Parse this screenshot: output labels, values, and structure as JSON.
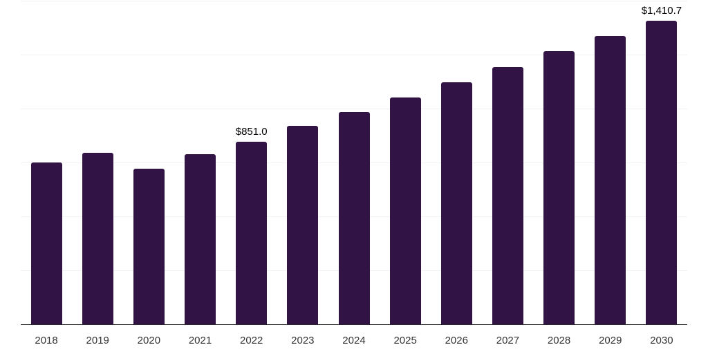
{
  "chart_data": {
    "type": "bar",
    "title": "",
    "xlabel": "",
    "ylabel": "",
    "categories": [
      "2018",
      "2019",
      "2020",
      "2021",
      "2022",
      "2023",
      "2024",
      "2025",
      "2026",
      "2027",
      "2028",
      "2029",
      "2030"
    ],
    "values": [
      753,
      798,
      724,
      792,
      851.0,
      922,
      987,
      1054,
      1125,
      1194,
      1270,
      1341,
      1410.7
    ],
    "data_labels": [
      "",
      "",
      "",
      "",
      "$851.0",
      "",
      "",
      "",
      "",
      "",
      "",
      "",
      "$1,410.7"
    ],
    "ylim": [
      0,
      1500
    ],
    "grid_step": 250,
    "grid": "horizontal",
    "legend_position": "none",
    "y_tick_labels_visible": false,
    "colors": {
      "bar": "#321345",
      "axis": "#262626",
      "gridline": "#f2f2f5",
      "tick_label": "#333333",
      "data_label": "#000000",
      "background": "#ffffff"
    }
  }
}
